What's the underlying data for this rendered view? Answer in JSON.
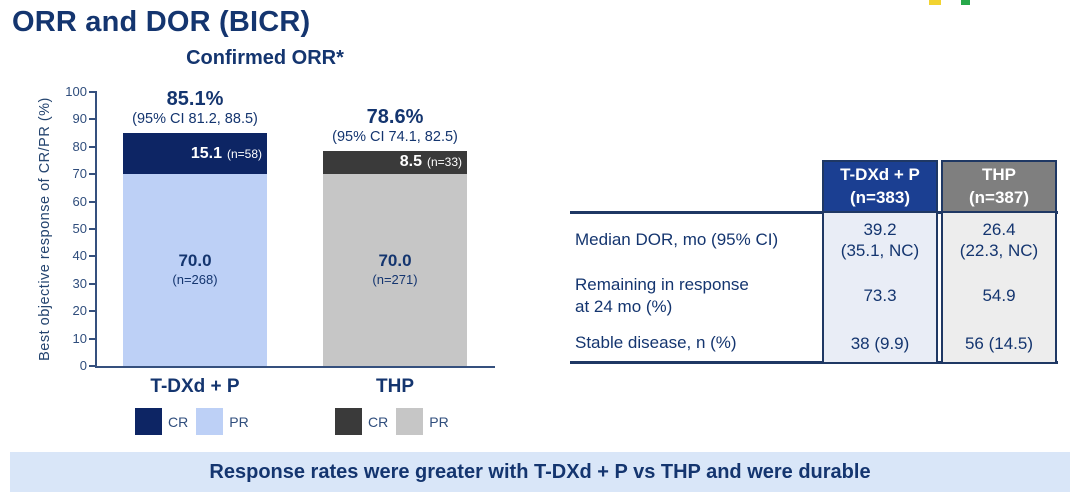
{
  "slide": {
    "title": "ORR and DOR (BICR)",
    "footer_banner": "Response rates were greater with T-DXd + P vs THP and were durable"
  },
  "logo": {
    "fragment_colors": [
      "#f2d330",
      "#27a84a"
    ]
  },
  "chart_data": {
    "type": "bar",
    "stacked": true,
    "title": "Confirmed ORR*",
    "ylabel": "Best objective response of CR/PR (%)",
    "ylim": [
      0,
      100
    ],
    "yticks": [
      0,
      10,
      20,
      30,
      40,
      50,
      60,
      70,
      80,
      90,
      100
    ],
    "categories": [
      "T-DXd + P",
      "THP"
    ],
    "groups": [
      {
        "label": "T-DXd + P",
        "orr_label": "85.1%",
        "orr_value": 85.1,
        "ci_label": "(95% CI 81.2, 88.5)",
        "cr": {
          "label": "CR",
          "value": 15.1,
          "display": "15.1",
          "n": "(n=58)",
          "color": "#0d2564",
          "text_color": "#ffffff"
        },
        "pr": {
          "label": "PR",
          "value": 70.0,
          "display": "70.0",
          "n": "(n=268)",
          "color": "#bdd0f6",
          "text_color": "#14356f"
        }
      },
      {
        "label": "THP",
        "orr_label": "78.6%",
        "orr_value": 78.6,
        "ci_label": "(95% CI 74.1, 82.5)",
        "cr": {
          "label": "CR",
          "value": 8.5,
          "display": "8.5",
          "n": "(n=33)",
          "color": "#3a3a3a",
          "text_color": "#ffffff"
        },
        "pr": {
          "label": "PR",
          "value": 70.0,
          "display": "70.0",
          "n": "(n=271)",
          "color": "#c6c6c6",
          "text_color": "#14356f"
        }
      }
    ]
  },
  "table": {
    "columns": [
      {
        "header": "T-DXd + P\n(n=383)",
        "header_bg": "#1b3f92",
        "body_bg": "#e9edf6"
      },
      {
        "header": "THP\n(n=387)",
        "header_bg": "#7f7f7f",
        "body_bg": "#ededed"
      }
    ],
    "rows": [
      {
        "label": "Median DOR, mo (95% CI)",
        "values": [
          "39.2\n(35.1, NC)",
          "26.4\n(22.3, NC)"
        ]
      },
      {
        "label": "Remaining in response\nat 24 mo (%)",
        "values": [
          "73.3",
          "54.9"
        ]
      },
      {
        "label": "Stable disease, n (%)",
        "values": [
          "38 (9.9)",
          "56 (14.5)"
        ]
      }
    ]
  },
  "colors": {
    "navy_text": "#14356f",
    "bar_cr_tdxd": "#0d2564",
    "bar_pr_tdxd": "#bdd0f6",
    "bar_cr_thp": "#3a3a3a",
    "bar_pr_thp": "#c6c6c6",
    "table_header_tdxd": "#1b3f92",
    "table_header_thp": "#7f7f7f",
    "table_rule": "#1f3864",
    "banner_bg": "#d9e6f8"
  }
}
